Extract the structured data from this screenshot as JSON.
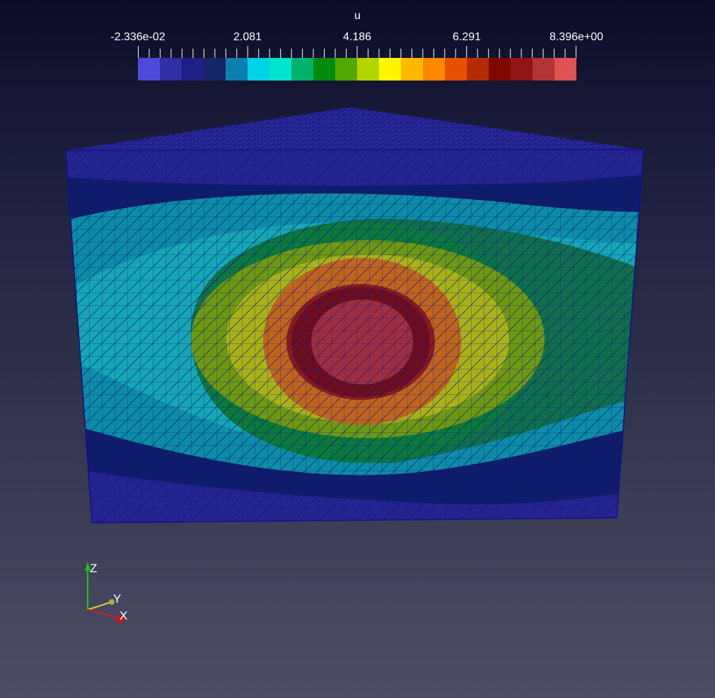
{
  "scalar_bar": {
    "title": "u",
    "labels": [
      "-2.336e-02",
      "2.081",
      "4.186",
      "6.291",
      "8.396e+00"
    ],
    "colors": [
      "#4b4ad9",
      "#2f2fa6",
      "#1d1f82",
      "#152466",
      "#0b7fb0",
      "#00d2e6",
      "#00e4cc",
      "#00b26b",
      "#008a0f",
      "#52a800",
      "#b2d600",
      "#fff500",
      "#ffb800",
      "#ff8800",
      "#e84f00",
      "#b32d00",
      "#7e0800",
      "#901515",
      "#b13434",
      "#e05252"
    ]
  },
  "axes": {
    "z_label": "Z",
    "y_label": "Y",
    "x_label": "X"
  },
  "colors": {
    "mesh_wire": "#10108a",
    "contour_low": "#24258e",
    "contour_dark": "#0f1d68",
    "contour_teal": "#0c8ea6",
    "contour_cyan": "#16a8b4",
    "contour_green": "#0a7a3a",
    "contour_yellow": "#a9b316",
    "contour_orange": "#c0651c",
    "contour_red": "#8a1c1c",
    "contour_center": "#a02f3e"
  }
}
